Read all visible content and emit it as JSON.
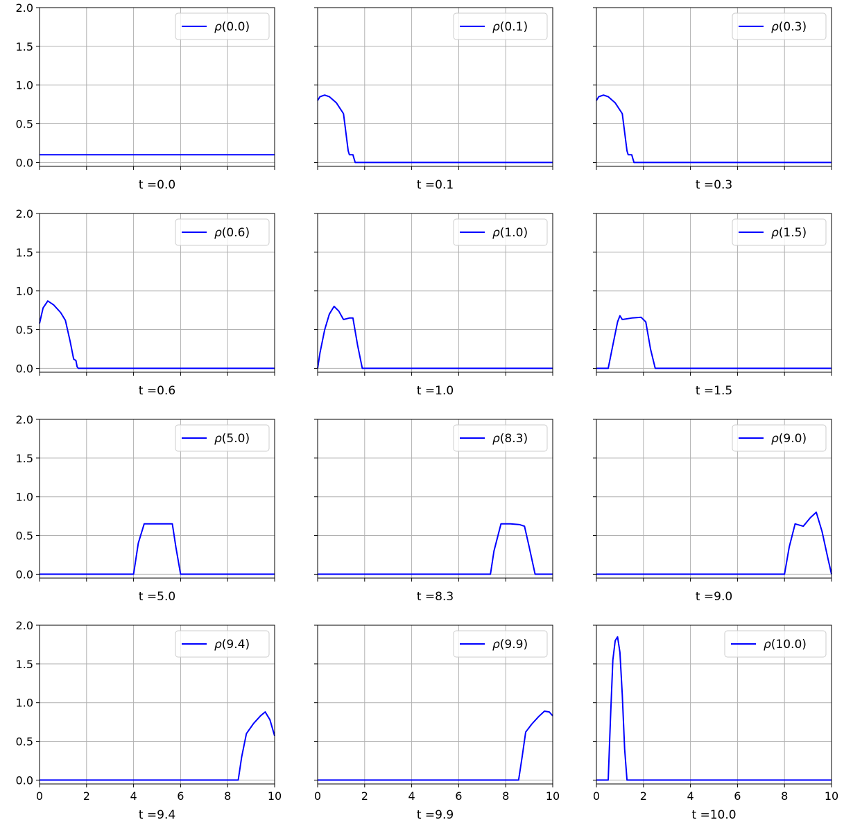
{
  "figure": {
    "line_color": "#0000ff",
    "grid_color": "#b0b0b0",
    "frame_color": "#000000"
  },
  "chart_data": [
    {
      "type": "line",
      "xlabel": "t =0.0",
      "legend": "ρ(0.0)",
      "xlim": [
        0,
        10
      ],
      "ylim": [
        -0.05,
        2.0
      ],
      "xticks": [
        "0",
        "2",
        "4",
        "6",
        "8",
        "10"
      ],
      "yticks": [
        "0.0",
        "0.5",
        "1.0",
        "1.5",
        "2.0"
      ],
      "legend_position": "top-right",
      "grid": true,
      "x": [
        0,
        10
      ],
      "y": [
        0.1,
        0.1
      ]
    },
    {
      "type": "line",
      "xlabel": "t =0.1",
      "legend": "ρ(0.1)",
      "xlim": [
        0,
        10
      ],
      "ylim": [
        -0.05,
        2.0
      ],
      "xticks": [
        "0",
        "2",
        "4",
        "6",
        "8",
        "10"
      ],
      "yticks": [
        "0.0",
        "0.5",
        "1.0",
        "1.5",
        "2.0"
      ],
      "legend_position": "top-right",
      "grid": true,
      "x": [
        0,
        0.1,
        0.3,
        0.5,
        0.8,
        1.1,
        1.3,
        1.35,
        1.5,
        1.55,
        1.6,
        10
      ],
      "y": [
        0.8,
        0.85,
        0.87,
        0.85,
        0.77,
        0.63,
        0.15,
        0.1,
        0.1,
        0.05,
        0.0,
        0.0
      ]
    },
    {
      "type": "line",
      "xlabel": "t =0.3",
      "legend": "ρ(0.3)",
      "xlim": [
        0,
        10
      ],
      "ylim": [
        -0.05,
        2.0
      ],
      "xticks": [
        "0",
        "2",
        "4",
        "6",
        "8",
        "10"
      ],
      "yticks": [
        "0.0",
        "0.5",
        "1.0",
        "1.5",
        "2.0"
      ],
      "legend_position": "top-right",
      "grid": true,
      "x": [
        0,
        0.1,
        0.3,
        0.5,
        0.8,
        1.1,
        1.3,
        1.35,
        1.5,
        1.55,
        1.6,
        10
      ],
      "y": [
        0.8,
        0.85,
        0.87,
        0.85,
        0.77,
        0.63,
        0.15,
        0.1,
        0.1,
        0.05,
        0.0,
        0.0
      ]
    },
    {
      "type": "line",
      "xlabel": "t =0.6",
      "legend": "ρ(0.6)",
      "xlim": [
        0,
        10
      ],
      "ylim": [
        -0.05,
        2.0
      ],
      "xticks": [
        "0",
        "2",
        "4",
        "6",
        "8",
        "10"
      ],
      "yticks": [
        "0.0",
        "0.5",
        "1.0",
        "1.5",
        "2.0"
      ],
      "legend_position": "top-right",
      "grid": true,
      "x": [
        0,
        0.15,
        0.35,
        0.6,
        0.9,
        1.1,
        1.3,
        1.45,
        1.55,
        1.6,
        1.65,
        10
      ],
      "y": [
        0.58,
        0.78,
        0.87,
        0.82,
        0.72,
        0.62,
        0.35,
        0.12,
        0.1,
        0.02,
        0.0,
        0.0
      ]
    },
    {
      "type": "line",
      "xlabel": "t =1.0",
      "legend": "ρ(1.0)",
      "xlim": [
        0,
        10
      ],
      "ylim": [
        -0.05,
        2.0
      ],
      "xticks": [
        "0",
        "2",
        "4",
        "6",
        "8",
        "10"
      ],
      "yticks": [
        "0.0",
        "0.5",
        "1.0",
        "1.5",
        "2.0"
      ],
      "legend_position": "top-right",
      "grid": true,
      "x": [
        0,
        0.1,
        0.3,
        0.5,
        0.7,
        0.9,
        1.1,
        1.35,
        1.5,
        1.7,
        1.9,
        10
      ],
      "y": [
        0.0,
        0.2,
        0.5,
        0.7,
        0.8,
        0.74,
        0.63,
        0.65,
        0.65,
        0.3,
        0.0,
        0.0
      ]
    },
    {
      "type": "line",
      "xlabel": "t =1.5",
      "legend": "ρ(1.5)",
      "xlim": [
        0,
        10
      ],
      "ylim": [
        -0.05,
        2.0
      ],
      "xticks": [
        "0",
        "2",
        "4",
        "6",
        "8",
        "10"
      ],
      "yticks": [
        "0.0",
        "0.5",
        "1.0",
        "1.5",
        "2.0"
      ],
      "legend_position": "top-right",
      "grid": true,
      "x": [
        0,
        0.5,
        0.7,
        0.9,
        1.0,
        1.1,
        1.5,
        1.9,
        2.1,
        2.3,
        2.5,
        10
      ],
      "y": [
        0.0,
        0.0,
        0.3,
        0.6,
        0.68,
        0.63,
        0.65,
        0.66,
        0.6,
        0.25,
        0.0,
        0.0
      ]
    },
    {
      "type": "line",
      "xlabel": "t =5.0",
      "legend": "ρ(5.0)",
      "xlim": [
        0,
        10
      ],
      "ylim": [
        -0.05,
        2.0
      ],
      "xticks": [
        "0",
        "2",
        "4",
        "6",
        "8",
        "10"
      ],
      "yticks": [
        "0.0",
        "0.5",
        "1.0",
        "1.5",
        "2.0"
      ],
      "legend_position": "top-right",
      "grid": true,
      "x": [
        0,
        4.0,
        4.2,
        4.45,
        5.5,
        5.65,
        5.8,
        6.0,
        10
      ],
      "y": [
        0.0,
        0.0,
        0.4,
        0.65,
        0.65,
        0.65,
        0.35,
        0.0,
        0.0
      ]
    },
    {
      "type": "line",
      "xlabel": "t =8.3",
      "legend": "ρ(8.3)",
      "xlim": [
        0,
        10
      ],
      "ylim": [
        -0.05,
        2.0
      ],
      "xticks": [
        "0",
        "2",
        "4",
        "6",
        "8",
        "10"
      ],
      "yticks": [
        "0.0",
        "0.5",
        "1.0",
        "1.5",
        "2.0"
      ],
      "legend_position": "top-right",
      "grid": true,
      "x": [
        0,
        7.35,
        7.5,
        7.8,
        8.2,
        8.6,
        8.8,
        9.0,
        9.25,
        10
      ],
      "y": [
        0.0,
        0.0,
        0.3,
        0.65,
        0.65,
        0.64,
        0.62,
        0.35,
        0.0,
        0.0
      ]
    },
    {
      "type": "line",
      "xlabel": "t =9.0",
      "legend": "ρ(9.0)",
      "xlim": [
        0,
        10
      ],
      "ylim": [
        -0.05,
        2.0
      ],
      "xticks": [
        "0",
        "2",
        "4",
        "6",
        "8",
        "10"
      ],
      "yticks": [
        "0.0",
        "0.5",
        "1.0",
        "1.5",
        "2.0"
      ],
      "legend_position": "top-right",
      "grid": true,
      "x": [
        0,
        8.0,
        8.2,
        8.45,
        8.8,
        9.1,
        9.35,
        9.6,
        9.85,
        10.0
      ],
      "y": [
        0.0,
        0.0,
        0.35,
        0.65,
        0.62,
        0.73,
        0.8,
        0.55,
        0.2,
        0.0
      ]
    },
    {
      "type": "line",
      "xlabel": "t =9.4",
      "legend": "ρ(9.4)",
      "xlim": [
        0,
        10
      ],
      "ylim": [
        -0.05,
        2.0
      ],
      "xticks": [
        "0",
        "2",
        "4",
        "6",
        "8",
        "10"
      ],
      "yticks": [
        "0.0",
        "0.5",
        "1.0",
        "1.5",
        "2.0"
      ],
      "legend_position": "top-right",
      "grid": true,
      "x": [
        0,
        8.45,
        8.6,
        8.8,
        9.1,
        9.4,
        9.6,
        9.8,
        10.0
      ],
      "y": [
        0.0,
        0.0,
        0.3,
        0.6,
        0.73,
        0.83,
        0.88,
        0.78,
        0.57
      ]
    },
    {
      "type": "line",
      "xlabel": "t =9.9",
      "legend": "ρ(9.9)",
      "xlim": [
        0,
        10
      ],
      "ylim": [
        -0.05,
        2.0
      ],
      "xticks": [
        "0",
        "2",
        "4",
        "6",
        "8",
        "10"
      ],
      "yticks": [
        "0.0",
        "0.5",
        "1.0",
        "1.5",
        "2.0"
      ],
      "legend_position": "top-right",
      "grid": true,
      "x": [
        0,
        8.55,
        8.7,
        8.85,
        9.1,
        9.4,
        9.65,
        9.85,
        10.0
      ],
      "y": [
        0.0,
        0.0,
        0.3,
        0.62,
        0.72,
        0.82,
        0.89,
        0.88,
        0.83
      ]
    },
    {
      "type": "line",
      "xlabel": "t =10.0",
      "legend": "ρ(10.0)",
      "xlim": [
        0,
        10
      ],
      "ylim": [
        -0.05,
        2.0
      ],
      "xticks": [
        "0",
        "2",
        "4",
        "6",
        "8",
        "10"
      ],
      "yticks": [
        "0.0",
        "0.5",
        "1.0",
        "1.5",
        "2.0"
      ],
      "legend_position": "top-right",
      "grid": true,
      "x": [
        0,
        0.5,
        0.6,
        0.7,
        0.8,
        0.9,
        1.0,
        1.1,
        1.2,
        1.3,
        10
      ],
      "y": [
        0.0,
        0.0,
        0.8,
        1.55,
        1.8,
        1.85,
        1.65,
        1.1,
        0.4,
        0.0,
        0.0
      ]
    }
  ]
}
